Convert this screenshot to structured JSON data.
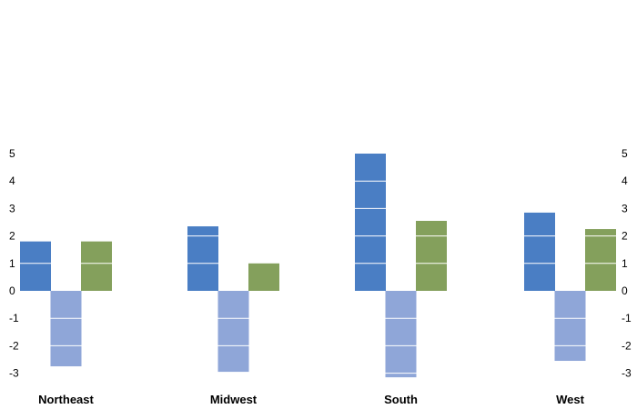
{
  "chart_data": {
    "type": "bar",
    "title": "",
    "xlabel": "",
    "ylabel": "",
    "categories": [
      "Northeast",
      "Midwest",
      "South",
      "West"
    ],
    "series": [
      {
        "values": [
          1.8,
          2.35,
          5.0,
          2.85
        ]
      },
      {
        "values": [
          -2.75,
          -2.95,
          -3.15,
          -2.55
        ]
      },
      {
        "values": [
          1.8,
          1.0,
          2.55,
          2.25
        ]
      }
    ],
    "ylim": [
      -3,
      5
    ],
    "yticks": [
      "5",
      "4",
      "3",
      "2",
      "1",
      "0",
      "-1",
      "-2",
      "-3"
    ],
    "grid": false,
    "legend": "none",
    "colors": [
      "#4a7ec4",
      "#8fa6d8",
      "#84a05c"
    ]
  }
}
